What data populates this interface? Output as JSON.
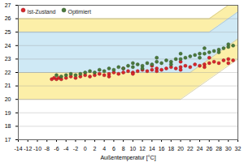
{
  "chart_data": {
    "type": "scatter",
    "x_label": "Außentemperatur [°C]",
    "xlim": [
      -14,
      32
    ],
    "ylim": [
      17,
      27
    ],
    "xticks": [
      -14,
      -12,
      -10,
      -8,
      -6,
      -4,
      -2,
      0,
      2,
      4,
      6,
      8,
      10,
      12,
      14,
      16,
      18,
      20,
      22,
      24,
      26,
      28,
      30,
      32
    ],
    "yticks": [
      17,
      18,
      19,
      20,
      21,
      22,
      23,
      24,
      25,
      26,
      27
    ],
    "grid": true,
    "legend": "top-left",
    "comfort_bands": [
      {
        "color": "#fcefa8",
        "x": [
          -14,
          20,
          26,
          32
        ],
        "lower": [
          20,
          20,
          21.5,
          23
        ],
        "upper": [
          26,
          26,
          26,
          27.5
        ]
      },
      {
        "color": "#cfe9f5",
        "x": [
          -14,
          22,
          26,
          32
        ],
        "lower": [
          22,
          22,
          23,
          24.5
        ],
        "upper": [
          25,
          25,
          25,
          26.5
        ]
      }
    ],
    "series": [
      {
        "name": "Ist-Zustand",
        "color": "#d9262b",
        "marker": "circle",
        "x": [
          -7,
          -6.5,
          -6,
          -5.5,
          -5,
          -4,
          -3,
          -2,
          -1,
          0,
          1,
          2,
          3,
          4,
          5,
          6,
          7,
          8,
          9,
          10,
          11,
          12,
          13,
          14,
          15,
          16,
          17,
          18,
          19,
          20,
          21,
          22,
          23,
          24,
          25,
          26,
          27,
          28,
          29,
          30,
          31,
          5,
          10,
          15,
          20,
          25,
          30,
          8,
          14,
          20,
          26
        ],
        "values": [
          21.5,
          21.6,
          21.5,
          21.6,
          21.5,
          21.6,
          21.7,
          21.6,
          21.7,
          21.8,
          21.7,
          21.8,
          21.9,
          21.8,
          21.9,
          22.0,
          21.9,
          22.0,
          22.1,
          22.0,
          22.1,
          22.2,
          22.1,
          22.2,
          22.3,
          22.2,
          22.3,
          22.4,
          22.3,
          22.4,
          22.5,
          22.4,
          22.6,
          22.5,
          22.6,
          22.7,
          22.8,
          22.7,
          22.9,
          23.0,
          22.9,
          21.7,
          21.9,
          22.1,
          22.2,
          22.4,
          22.7,
          22.3,
          22.5,
          22.8,
          23.1
        ]
      },
      {
        "name": "Optimiert",
        "color": "#4a7a3c",
        "marker": "circle",
        "x": [
          -6,
          -5,
          -4,
          -3,
          -2,
          -1,
          0,
          1,
          2,
          3,
          4,
          5,
          6,
          7,
          8,
          9,
          10,
          11,
          12,
          13,
          14,
          15,
          16,
          17,
          18,
          19,
          20,
          21,
          22,
          23,
          24,
          25,
          26,
          27,
          28,
          29,
          30,
          31,
          10,
          15,
          20,
          25,
          30,
          12,
          18,
          24,
          28
        ],
        "values": [
          21.8,
          21.7,
          21.8,
          21.9,
          21.8,
          21.9,
          22.0,
          22.1,
          22.0,
          22.2,
          22.1,
          22.3,
          22.2,
          22.4,
          22.3,
          22.5,
          22.4,
          22.6,
          22.5,
          22.7,
          22.6,
          22.8,
          22.7,
          22.9,
          22.8,
          23.0,
          23.0,
          23.1,
          23.2,
          23.3,
          23.4,
          23.4,
          23.5,
          23.6,
          23.7,
          23.8,
          23.9,
          24.0,
          22.7,
          23.1,
          23.4,
          23.8,
          24.1,
          22.3,
          22.6,
          23.1,
          23.5
        ]
      }
    ]
  }
}
